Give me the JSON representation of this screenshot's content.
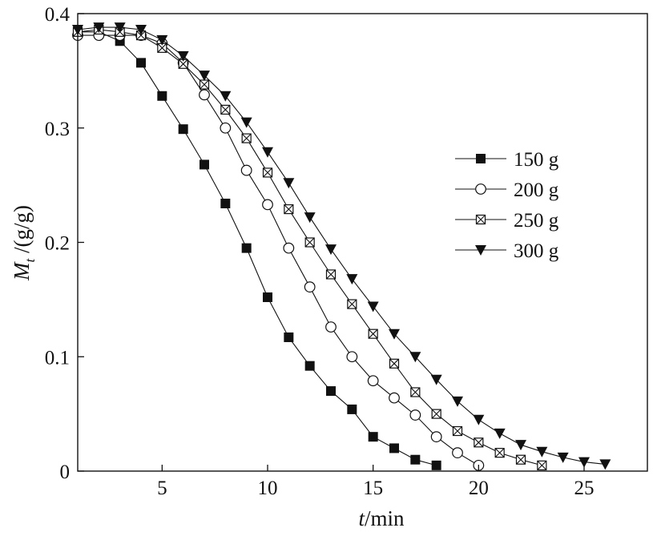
{
  "chart_data": {
    "type": "line",
    "xlabel_italic": "t",
    "xlabel_rest": "/min",
    "ylabel_italic": "M",
    "ylabel_sub": "t",
    "ylabel_rest": " /(g/g)",
    "xlim": [
      1,
      28
    ],
    "ylim": [
      0,
      0.4
    ],
    "xticks": [
      5,
      10,
      15,
      20,
      25
    ],
    "xtick_labels": [
      "5",
      "10",
      "15",
      "20",
      "25"
    ],
    "yticks": [
      0,
      0.1,
      0.2,
      0.3,
      0.4
    ],
    "ytick_labels": [
      "0",
      "0.1",
      "0.2",
      "0.3",
      "0.4"
    ],
    "legend_position": "right",
    "series": [
      {
        "name": "150 g",
        "marker": "filled-square",
        "x": [
          1,
          2,
          3,
          4,
          5,
          6,
          7,
          8,
          9,
          10,
          11,
          12,
          13,
          14,
          15,
          16,
          17,
          18
        ],
        "y": [
          0.384,
          0.384,
          0.376,
          0.357,
          0.328,
          0.299,
          0.268,
          0.234,
          0.195,
          0.152,
          0.117,
          0.092,
          0.07,
          0.054,
          0.03,
          0.02,
          0.01,
          0.005
        ]
      },
      {
        "name": "200 g",
        "marker": "open-circle",
        "x": [
          1,
          2,
          3,
          4,
          5,
          6,
          7,
          8,
          9,
          10,
          11,
          12,
          13,
          14,
          15,
          16,
          17,
          18,
          19,
          20
        ],
        "y": [
          0.381,
          0.381,
          0.381,
          0.381,
          0.374,
          0.357,
          0.329,
          0.3,
          0.263,
          0.233,
          0.195,
          0.161,
          0.126,
          0.1,
          0.079,
          0.064,
          0.049,
          0.03,
          0.016,
          0.005
        ]
      },
      {
        "name": "250 g",
        "marker": "crossed-square",
        "x": [
          1,
          2,
          3,
          4,
          5,
          6,
          7,
          8,
          9,
          10,
          11,
          12,
          13,
          14,
          15,
          16,
          17,
          18,
          19,
          20,
          21,
          22,
          23
        ],
        "y": [
          0.384,
          0.386,
          0.384,
          0.381,
          0.37,
          0.356,
          0.338,
          0.316,
          0.291,
          0.261,
          0.229,
          0.2,
          0.172,
          0.146,
          0.12,
          0.094,
          0.069,
          0.05,
          0.035,
          0.025,
          0.016,
          0.01,
          0.005
        ]
      },
      {
        "name": "300 g",
        "marker": "filled-down-triangle",
        "x": [
          1,
          2,
          3,
          4,
          5,
          6,
          7,
          8,
          9,
          10,
          11,
          12,
          13,
          14,
          15,
          16,
          17,
          18,
          19,
          20,
          21,
          22,
          23,
          24,
          25,
          26
        ],
        "y": [
          0.386,
          0.388,
          0.388,
          0.386,
          0.377,
          0.363,
          0.346,
          0.328,
          0.305,
          0.279,
          0.252,
          0.222,
          0.194,
          0.168,
          0.144,
          0.12,
          0.1,
          0.08,
          0.061,
          0.045,
          0.033,
          0.023,
          0.017,
          0.012,
          0.008,
          0.006
        ]
      }
    ]
  }
}
